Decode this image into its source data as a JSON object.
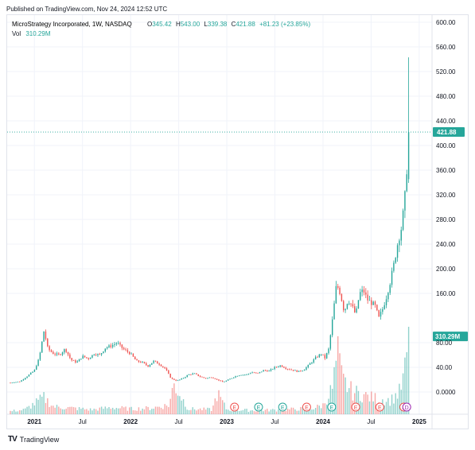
{
  "header": {
    "published": "Published on TradingView.com, Nov 24, 2024 12:52 UTC"
  },
  "legend": {
    "symbol": "MicroStrategy Incorporated, 1W, NASDAQ",
    "o_label": "O",
    "o_value": "345.42",
    "h_label": "H",
    "h_value": "543.00",
    "l_label": "L",
    "l_value": "339.38",
    "c_label": "C",
    "c_value": "421.88",
    "change": "+81.23 (+23.85%)",
    "vol_label": "Vol",
    "vol_value": "310.29M"
  },
  "footer": {
    "logo": "TV",
    "brand": "TradingView"
  },
  "colors": {
    "up": "#26a69a",
    "down": "#ef5350",
    "grid": "#f0f3fa",
    "text": "#131722",
    "last_price_bg": "#26a69a"
  },
  "chart_data": {
    "type": "candlestick",
    "title": "MicroStrategy Incorporated, 1W, NASDAQ",
    "ylim": [
      -30,
      610
    ],
    "price_ticks": [
      "600.00",
      "560.00",
      "520.00",
      "480.00",
      "440.00",
      "400.00",
      "360.00",
      "320.00",
      "280.00",
      "240.00",
      "200.00",
      "160.00",
      "80.00",
      "40.00",
      "0.0000"
    ],
    "price_tick_values": [
      600,
      560,
      520,
      480,
      440,
      400,
      360,
      320,
      280,
      240,
      200,
      160,
      80,
      40,
      0
    ],
    "last_price": {
      "value": 421.88,
      "label": "421.88"
    },
    "volume_marker": {
      "value": 103,
      "label": "310.29M"
    },
    "time_ticks": [
      {
        "label": "2021",
        "t": 2021.0,
        "bold": true
      },
      {
        "label": "Jul",
        "t": 2021.5,
        "bold": false
      },
      {
        "label": "2022",
        "t": 2022.0,
        "bold": true
      },
      {
        "label": "Jul",
        "t": 2022.5,
        "bold": false
      },
      {
        "label": "2023",
        "t": 2023.0,
        "bold": true
      },
      {
        "label": "Jul",
        "t": 2023.5,
        "bold": false
      },
      {
        "label": "2024",
        "t": 2024.0,
        "bold": true
      },
      {
        "label": "Jul",
        "t": 2024.5,
        "bold": false
      },
      {
        "label": "2025",
        "t": 2025.0,
        "bold": true
      }
    ],
    "x_range": [
      2020.75,
      2025.1
    ],
    "earnings": [
      {
        "t": 2023.08,
        "type": "down",
        "label": "E"
      },
      {
        "t": 2023.33,
        "type": "up",
        "label": "E"
      },
      {
        "t": 2023.58,
        "type": "up",
        "label": "E"
      },
      {
        "t": 2023.83,
        "type": "down",
        "label": "E"
      },
      {
        "t": 2024.09,
        "type": "up",
        "label": "E"
      },
      {
        "t": 2024.34,
        "type": "down",
        "label": "E"
      },
      {
        "t": 2024.59,
        "type": "down",
        "label": "E"
      },
      {
        "t": 2024.84,
        "type": "down",
        "label": "E"
      },
      {
        "t": 2024.87,
        "type": "dividend",
        "label": "D"
      }
    ],
    "price_path": [
      [
        2020.75,
        15
      ],
      [
        2020.85,
        17
      ],
      [
        2020.92,
        25
      ],
      [
        2021.0,
        35
      ],
      [
        2021.05,
        55
      ],
      [
        2021.1,
        100
      ],
      [
        2021.14,
        70
      ],
      [
        2021.2,
        62
      ],
      [
        2021.26,
        60
      ],
      [
        2021.32,
        70
      ],
      [
        2021.38,
        52
      ],
      [
        2021.44,
        48
      ],
      [
        2021.5,
        58
      ],
      [
        2021.56,
        54
      ],
      [
        2021.62,
        62
      ],
      [
        2021.68,
        60
      ],
      [
        2021.74,
        72
      ],
      [
        2021.8,
        75
      ],
      [
        2021.86,
        80
      ],
      [
        2021.92,
        70
      ],
      [
        2022.0,
        62
      ],
      [
        2022.06,
        50
      ],
      [
        2022.12,
        48
      ],
      [
        2022.18,
        42
      ],
      [
        2022.24,
        50
      ],
      [
        2022.3,
        45
      ],
      [
        2022.36,
        38
      ],
      [
        2022.42,
        22
      ],
      [
        2022.48,
        18
      ],
      [
        2022.54,
        22
      ],
      [
        2022.6,
        28
      ],
      [
        2022.66,
        30
      ],
      [
        2022.72,
        25
      ],
      [
        2022.78,
        22
      ],
      [
        2022.84,
        24
      ],
      [
        2022.9,
        20
      ],
      [
        2022.96,
        16
      ],
      [
        2023.02,
        20
      ],
      [
        2023.08,
        25
      ],
      [
        2023.14,
        28
      ],
      [
        2023.2,
        28
      ],
      [
        2023.26,
        32
      ],
      [
        2023.32,
        30
      ],
      [
        2023.38,
        35
      ],
      [
        2023.44,
        34
      ],
      [
        2023.5,
        40
      ],
      [
        2023.56,
        43
      ],
      [
        2023.62,
        38
      ],
      [
        2023.68,
        36
      ],
      [
        2023.74,
        33
      ],
      [
        2023.8,
        36
      ],
      [
        2023.86,
        45
      ],
      [
        2023.92,
        55
      ],
      [
        2023.98,
        62
      ],
      [
        2024.02,
        55
      ],
      [
        2024.06,
        70
      ],
      [
        2024.1,
        120
      ],
      [
        2024.14,
        175
      ],
      [
        2024.18,
        160
      ],
      [
        2024.22,
        130
      ],
      [
        2024.26,
        150
      ],
      [
        2024.3,
        140
      ],
      [
        2024.34,
        125
      ],
      [
        2024.38,
        160
      ],
      [
        2024.42,
        165
      ],
      [
        2024.46,
        150
      ],
      [
        2024.5,
        145
      ],
      [
        2024.54,
        140
      ],
      [
        2024.58,
        120
      ],
      [
        2024.62,
        135
      ],
      [
        2024.66,
        155
      ],
      [
        2024.7,
        180
      ],
      [
        2024.74,
        210
      ],
      [
        2024.78,
        245
      ],
      [
        2024.82,
        270
      ],
      [
        2024.86,
        330
      ],
      [
        2024.89,
        421.88
      ]
    ],
    "volume_path": [
      [
        2020.75,
        4
      ],
      [
        2020.9,
        6
      ],
      [
        2021.05,
        18
      ],
      [
        2021.1,
        22
      ],
      [
        2021.2,
        10
      ],
      [
        2021.4,
        8
      ],
      [
        2021.6,
        6
      ],
      [
        2021.8,
        9
      ],
      [
        2022.0,
        7
      ],
      [
        2022.2,
        8
      ],
      [
        2022.4,
        12
      ],
      [
        2022.45,
        40
      ],
      [
        2022.6,
        7
      ],
      [
        2022.85,
        6
      ],
      [
        2022.9,
        28
      ],
      [
        2023.0,
        6
      ],
      [
        2023.3,
        5
      ],
      [
        2023.6,
        6
      ],
      [
        2023.9,
        8
      ],
      [
        2024.0,
        12
      ],
      [
        2024.1,
        35
      ],
      [
        2024.15,
        80
      ],
      [
        2024.2,
        45
      ],
      [
        2024.3,
        30
      ],
      [
        2024.5,
        22
      ],
      [
        2024.7,
        18
      ],
      [
        2024.8,
        30
      ],
      [
        2024.85,
        55
      ],
      [
        2024.89,
        103
      ]
    ]
  }
}
